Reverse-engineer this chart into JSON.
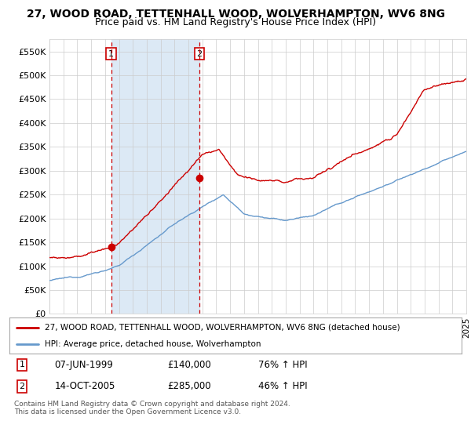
{
  "title1": "27, WOOD ROAD, TETTENHALL WOOD, WOLVERHAMPTON, WV6 8NG",
  "title2": "Price paid vs. HM Land Registry's House Price Index (HPI)",
  "legend_red": "27, WOOD ROAD, TETTENHALL WOOD, WOLVERHAMPTON, WV6 8NG (detached house)",
  "legend_blue": "HPI: Average price, detached house, Wolverhampton",
  "annotation1_date": "07-JUN-1999",
  "annotation1_price": "£140,000",
  "annotation1_hpi": "76% ↑ HPI",
  "annotation1_year": 1999.44,
  "annotation1_value": 140000,
  "annotation2_date": "14-OCT-2005",
  "annotation2_price": "£285,000",
  "annotation2_hpi": "46% ↑ HPI",
  "annotation2_year": 2005.79,
  "annotation2_value": 285000,
  "footer": "Contains HM Land Registry data © Crown copyright and database right 2024.\nThis data is licensed under the Open Government Licence v3.0.",
  "xmin": 1995,
  "xmax": 2025,
  "ymin": 0,
  "ymax": 575000,
  "yticks": [
    0,
    50000,
    100000,
    150000,
    200000,
    250000,
    300000,
    350000,
    400000,
    450000,
    500000,
    550000
  ],
  "ytick_labels": [
    "£0",
    "£50K",
    "£100K",
    "£150K",
    "£200K",
    "£250K",
    "£300K",
    "£350K",
    "£400K",
    "£450K",
    "£500K",
    "£550K"
  ],
  "plot_bg": "#ffffff",
  "shade_color": "#dce9f5",
  "grid_color": "#cccccc",
  "red_color": "#cc0000",
  "blue_color": "#6699cc",
  "title_fontsize": 10,
  "subtitle_fontsize": 9
}
